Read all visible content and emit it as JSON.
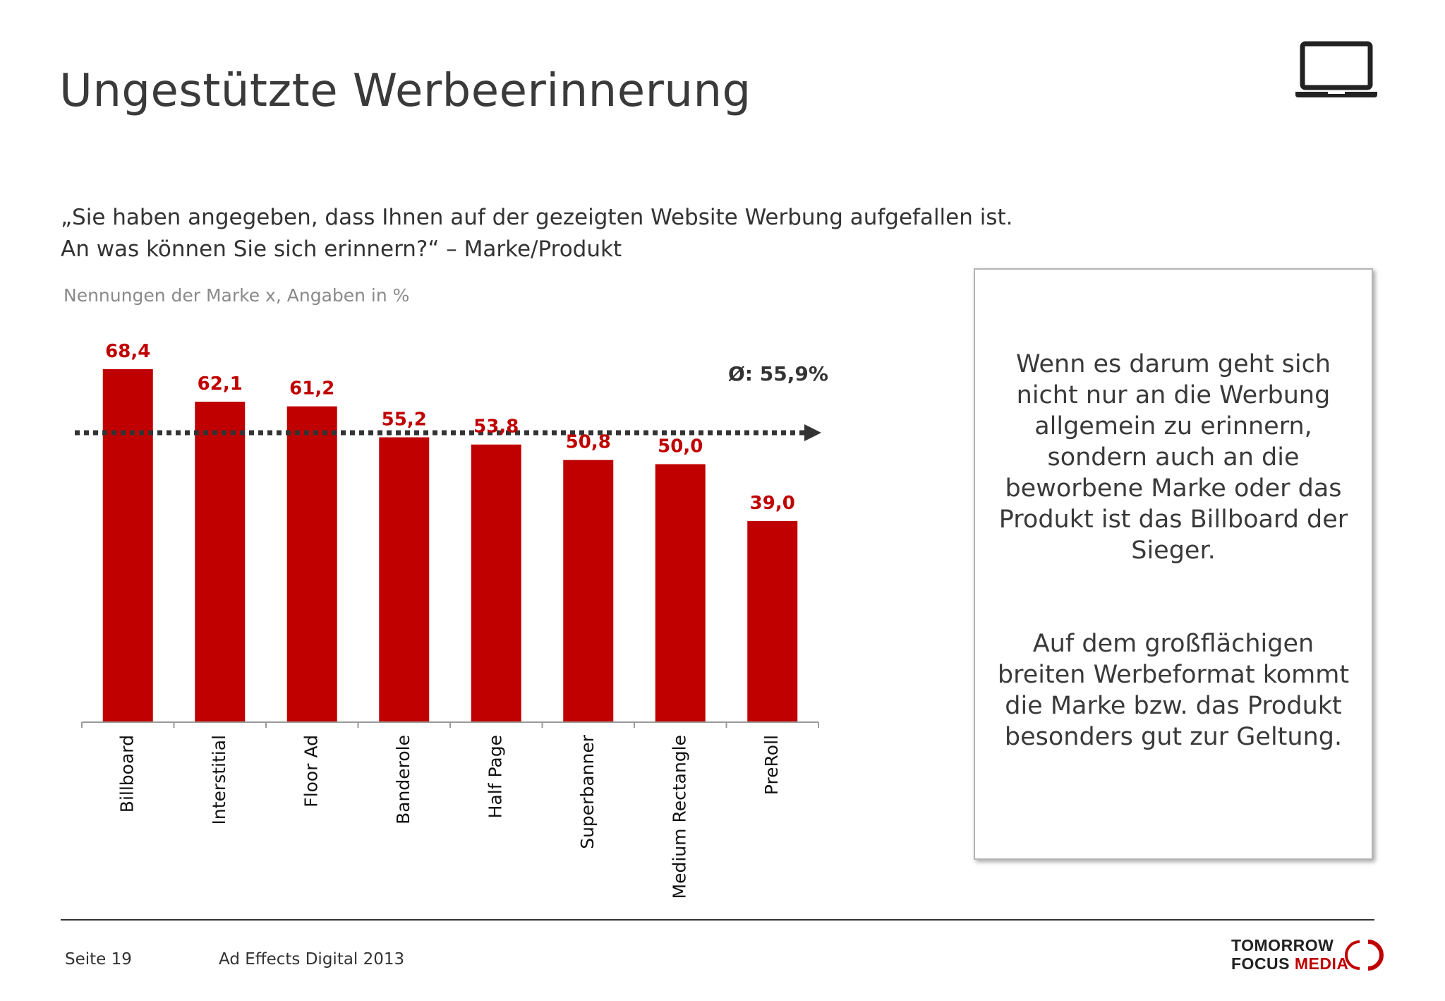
{
  "header": {
    "title": "Ungestützte Werbeerinnerung",
    "device_icon": "laptop-icon"
  },
  "question": {
    "line1": "„Sie haben angegeben, dass Ihnen auf der gezeigten Website Werbung aufgefallen ist.",
    "line2": "An was können Sie sich erinnern?“ – Marke/Produkt"
  },
  "chart_subtitle": "Nennungen der Marke x, Angaben in %",
  "chart_data": {
    "type": "bar",
    "title": "",
    "xlabel": "",
    "ylabel": "",
    "categories": [
      "Billboard",
      "Interstitial",
      "Floor Ad",
      "Banderole",
      "Half Page",
      "Superbanner",
      "Medium Rectangle",
      "PreRoll"
    ],
    "values": [
      68.4,
      62.1,
      61.2,
      55.2,
      53.8,
      50.8,
      50.0,
      39.0
    ],
    "value_labels": [
      "68,4",
      "62,1",
      "61,2",
      "55,2",
      "53,8",
      "50,8",
      "50,0",
      "39,0"
    ],
    "ylim": [
      0,
      70
    ],
    "grid": false,
    "legend": "none",
    "average": {
      "value": 55.9,
      "label": "Ø: 55,9%"
    },
    "bar_color": "#c00000"
  },
  "callout": {
    "paragraph1": "Wenn es darum geht sich nicht nur an die Werbung allgemein zu erinnern, sondern auch an die beworbene Marke oder das Produkt ist das Billboard der Sieger.",
    "paragraph2": "Auf dem großflächigen breiten Werbeformat kommt die Marke bzw. das Produkt besonders gut zur Geltung."
  },
  "footer": {
    "page": "Seite 19",
    "study": "Ad Effects Digital 2013",
    "logo_line1": "TOMORROW",
    "logo_line2_a": "FOCUS",
    "logo_line2_b": "MEDIA"
  },
  "colors": {
    "accent": "#c00000",
    "text": "#333333",
    "subtle": "#8a8a8a"
  }
}
